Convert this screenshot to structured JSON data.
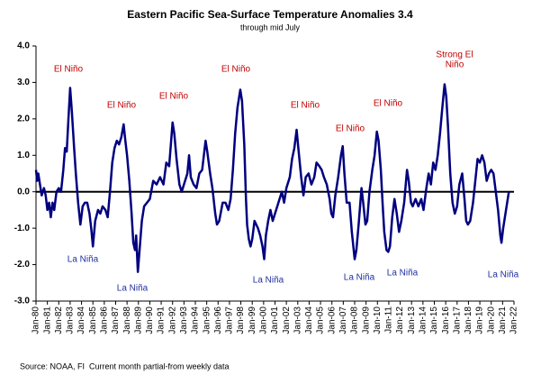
{
  "chart_data": {
    "type": "line",
    "title": "Eastern Pacific Sea-Surface Temperature Anomalies 3.4",
    "subtitle": "through mid July",
    "footer": [
      "Source: NOAA, FI",
      "Current month partial-from weekly data"
    ],
    "annotations": [
      {
        "lines": [
          "El Niño"
        ],
        "kind": "El Niño"
      },
      {
        "lines": [
          "El Niño"
        ],
        "kind": "El Niño"
      },
      {
        "lines": [
          "El Niño"
        ],
        "kind": "El Niño"
      },
      {
        "lines": [
          "El Niño"
        ],
        "kind": "El Niño"
      },
      {
        "lines": [
          "El Niño"
        ],
        "kind": "El Niño"
      },
      {
        "lines": [
          "El Niño"
        ],
        "kind": "El Niño"
      },
      {
        "lines": [
          "El Niño"
        ],
        "kind": "El Niño"
      },
      {
        "lines": [
          "Strong El",
          "Niño"
        ],
        "kind": "El Niño"
      },
      {
        "lines": [
          "La Niña"
        ],
        "kind": "La Niña"
      },
      {
        "lines": [
          "La Niña"
        ],
        "kind": "La Niña"
      },
      {
        "lines": [
          "La Niña"
        ],
        "kind": "La Niña"
      },
      {
        "lines": [
          "La Niña"
        ],
        "kind": "La Niña"
      },
      {
        "lines": [
          "La Niña"
        ],
        "kind": "La Niña"
      },
      {
        "lines": [
          "La Niña"
        ],
        "kind": "La Niña"
      }
    ],
    "annotation_colors": {
      "El Niño": "#c00000",
      "La Niña": "#1f2f9f"
    },
    "xlim": [
      1980,
      2022
    ],
    "xticks": [
      {
        "value": 1980,
        "label": "Jan-80"
      },
      {
        "value": 1981,
        "label": "Jan-81"
      },
      {
        "value": 1982,
        "label": "Jan-82"
      },
      {
        "value": 1983,
        "label": "Jan-83"
      },
      {
        "value": 1984,
        "label": "Jan-84"
      },
      {
        "value": 1985,
        "label": "Jan-85"
      },
      {
        "value": 1986,
        "label": "Jan-86"
      },
      {
        "value": 1987,
        "label": "Jan-87"
      },
      {
        "value": 1988,
        "label": "Jan-88"
      },
      {
        "value": 1989,
        "label": "Jan-89"
      },
      {
        "value": 1990,
        "label": "Jan-90"
      },
      {
        "value": 1991,
        "label": "Jan-91"
      },
      {
        "value": 1992,
        "label": "Jan-92"
      },
      {
        "value": 1993,
        "label": "Jan-93"
      },
      {
        "value": 1994,
        "label": "Jan-94"
      },
      {
        "value": 1995,
        "label": "Jan-95"
      },
      {
        "value": 1996,
        "label": "Jan-96"
      },
      {
        "value": 1997,
        "label": "Jan-97"
      },
      {
        "value": 1998,
        "label": "Jan-98"
      },
      {
        "value": 1999,
        "label": "Jan-99"
      },
      {
        "value": 2000,
        "label": "Jan-00"
      },
      {
        "value": 2001,
        "label": "Jan-01"
      },
      {
        "value": 2002,
        "label": "Jan-02"
      },
      {
        "value": 2003,
        "label": "Jan-03"
      },
      {
        "value": 2004,
        "label": "Jan-04"
      },
      {
        "value": 2005,
        "label": "Jan-05"
      },
      {
        "value": 2006,
        "label": "Jan-06"
      },
      {
        "value": 2007,
        "label": "Jan-07"
      },
      {
        "value": 2008,
        "label": "Jan-08"
      },
      {
        "value": 2009,
        "label": "Jan-09"
      },
      {
        "value": 2010,
        "label": "Jan-10"
      },
      {
        "value": 2011,
        "label": "Jan-11"
      },
      {
        "value": 2012,
        "label": "Jan-12"
      },
      {
        "value": 2013,
        "label": "Jan-13"
      },
      {
        "value": 2014,
        "label": "Jan-14"
      },
      {
        "value": 2015,
        "label": "Jan-15"
      },
      {
        "value": 2016,
        "label": "Jan-16"
      },
      {
        "value": 2017,
        "label": "Jan-17"
      },
      {
        "value": 2018,
        "label": "Jan-18"
      },
      {
        "value": 2019,
        "label": "Jan-19"
      },
      {
        "value": 2020,
        "label": "Jan-20"
      },
      {
        "value": 2021,
        "label": "Jan-21"
      },
      {
        "value": 2022,
        "label": "Jan-22"
      }
    ],
    "ylim": [
      -3,
      4
    ],
    "yticks": [
      {
        "value": -3,
        "label": "-3.0"
      },
      {
        "value": -2,
        "label": "-2.0"
      },
      {
        "value": -1,
        "label": "-1.0"
      },
      {
        "value": 0,
        "label": "0.0"
      },
      {
        "value": 1,
        "label": "1.0"
      },
      {
        "value": 2,
        "label": "2.0"
      },
      {
        "value": 3,
        "label": "3.0"
      },
      {
        "value": 4,
        "label": "4.0"
      }
    ],
    "color": "#000080",
    "x": [
      1980.0,
      1980.1,
      1980.2,
      1980.35,
      1980.5,
      1980.7,
      1980.85,
      1981.0,
      1981.15,
      1981.3,
      1981.45,
      1981.6,
      1981.8,
      1982.0,
      1982.2,
      1982.4,
      1982.55,
      1982.7,
      1982.85,
      1983.0,
      1983.15,
      1983.35,
      1983.5,
      1983.7,
      1983.9,
      1984.1,
      1984.3,
      1984.5,
      1984.7,
      1984.85,
      1985.0,
      1985.2,
      1985.45,
      1985.65,
      1985.85,
      1986.1,
      1986.3,
      1986.5,
      1986.7,
      1986.9,
      1987.1,
      1987.3,
      1987.5,
      1987.7,
      1987.85,
      1988.0,
      1988.2,
      1988.4,
      1988.55,
      1988.7,
      1988.8,
      1988.95,
      1989.1,
      1989.3,
      1989.5,
      1989.75,
      1990.0,
      1990.3,
      1990.6,
      1990.9,
      1991.2,
      1991.45,
      1991.7,
      1991.9,
      1992.0,
      1992.15,
      1992.35,
      1992.6,
      1992.8,
      1993.0,
      1993.3,
      1993.45,
      1993.6,
      1993.85,
      1994.1,
      1994.35,
      1994.6,
      1994.9,
      1995.05,
      1995.3,
      1995.5,
      1995.75,
      1995.9,
      1996.1,
      1996.4,
      1996.65,
      1996.9,
      1997.1,
      1997.3,
      1997.5,
      1997.7,
      1997.95,
      1998.1,
      1998.3,
      1998.45,
      1998.55,
      1998.7,
      1998.85,
      1999.0,
      1999.2,
      1999.5,
      1999.7,
      1999.9,
      2000.05,
      2000.2,
      2000.4,
      2000.6,
      2000.8,
      2001.0,
      2001.3,
      2001.6,
      2001.8,
      2002.0,
      2002.3,
      2002.5,
      2002.7,
      2002.9,
      2003.05,
      2003.3,
      2003.5,
      2003.7,
      2003.95,
      2004.2,
      2004.45,
      2004.65,
      2004.9,
      2005.1,
      2005.3,
      2005.55,
      2005.8,
      2005.95,
      2006.1,
      2006.3,
      2006.55,
      2006.8,
      2006.95,
      2007.1,
      2007.3,
      2007.55,
      2007.75,
      2008.0,
      2008.15,
      2008.35,
      2008.6,
      2008.75,
      2008.95,
      2009.1,
      2009.3,
      2009.55,
      2009.75,
      2009.95,
      2010.1,
      2010.3,
      2010.45,
      2010.6,
      2010.8,
      2010.95,
      2011.1,
      2011.3,
      2011.5,
      2011.7,
      2011.9,
      2012.1,
      2012.35,
      2012.6,
      2012.75,
      2012.95,
      2013.1,
      2013.35,
      2013.6,
      2013.85,
      2014.05,
      2014.3,
      2014.5,
      2014.7,
      2014.9,
      2015.1,
      2015.3,
      2015.5,
      2015.7,
      2015.9,
      2016.05,
      2016.2,
      2016.4,
      2016.6,
      2016.8,
      2017.0,
      2017.2,
      2017.45,
      2017.65,
      2017.8,
      2017.95,
      2018.15,
      2018.4,
      2018.6,
      2018.8,
      2019.0,
      2019.2,
      2019.4,
      2019.6,
      2019.8,
      2020.0,
      2020.2,
      2020.4,
      2020.6,
      2020.8,
      2020.9,
      2021.05,
      2021.25,
      2021.4,
      2021.55
    ],
    "values": [
      0.6,
      0.3,
      0.5,
      0.2,
      -0.1,
      0.1,
      -0.1,
      -0.5,
      -0.3,
      -0.7,
      -0.3,
      -0.5,
      0.0,
      0.1,
      0.0,
      0.6,
      1.2,
      1.1,
      2.0,
      2.85,
      2.2,
      1.2,
      0.5,
      -0.3,
      -0.9,
      -0.4,
      -0.3,
      -0.3,
      -0.6,
      -1.0,
      -1.5,
      -0.8,
      -0.5,
      -0.6,
      -0.4,
      -0.5,
      -0.7,
      0.0,
      0.8,
      1.2,
      1.4,
      1.3,
      1.5,
      1.85,
      1.4,
      1.0,
      0.3,
      -0.6,
      -1.4,
      -1.6,
      -1.2,
      -2.2,
      -1.6,
      -0.8,
      -0.4,
      -0.3,
      -0.2,
      0.3,
      0.2,
      0.4,
      0.2,
      0.8,
      0.7,
      1.5,
      1.9,
      1.6,
      0.9,
      0.2,
      0.0,
      0.2,
      0.5,
      1.0,
      0.4,
      0.2,
      0.1,
      0.5,
      0.6,
      1.4,
      1.1,
      0.5,
      0.1,
      -0.6,
      -0.9,
      -0.8,
      -0.3,
      -0.3,
      -0.5,
      -0.2,
      0.6,
      1.6,
      2.3,
      2.8,
      2.5,
      1.3,
      -0.2,
      -0.9,
      -1.3,
      -1.5,
      -1.3,
      -0.8,
      -1.0,
      -1.2,
      -1.5,
      -1.85,
      -1.2,
      -0.8,
      -0.5,
      -0.8,
      -0.6,
      -0.3,
      0.0,
      -0.3,
      0.1,
      0.4,
      0.9,
      1.2,
      1.7,
      1.2,
      0.4,
      -0.1,
      0.4,
      0.5,
      0.2,
      0.4,
      0.8,
      0.7,
      0.6,
      0.4,
      0.2,
      -0.2,
      -0.6,
      -0.7,
      -0.1,
      0.4,
      1.0,
      1.25,
      0.5,
      -0.3,
      -0.3,
      -1.1,
      -1.85,
      -1.6,
      -0.9,
      0.1,
      -0.3,
      -0.9,
      -0.8,
      0.0,
      0.6,
      1.0,
      1.65,
      1.4,
      0.6,
      -0.3,
      -1.1,
      -1.6,
      -1.65,
      -1.5,
      -0.7,
      -0.2,
      -0.6,
      -1.1,
      -0.8,
      -0.3,
      0.6,
      0.3,
      -0.3,
      -0.4,
      -0.2,
      -0.4,
      -0.2,
      -0.5,
      0.1,
      0.5,
      0.2,
      0.8,
      0.6,
      1.0,
      1.6,
      2.3,
      2.95,
      2.6,
      1.8,
      0.5,
      -0.3,
      -0.6,
      -0.4,
      0.2,
      0.5,
      -0.2,
      -0.8,
      -0.9,
      -0.8,
      -0.3,
      0.3,
      0.9,
      0.8,
      1.0,
      0.8,
      0.3,
      0.5,
      0.6,
      0.5,
      0.0,
      -0.5,
      -1.2,
      -1.4,
      -1.0,
      -0.6,
      -0.3,
      0.0
    ]
  }
}
